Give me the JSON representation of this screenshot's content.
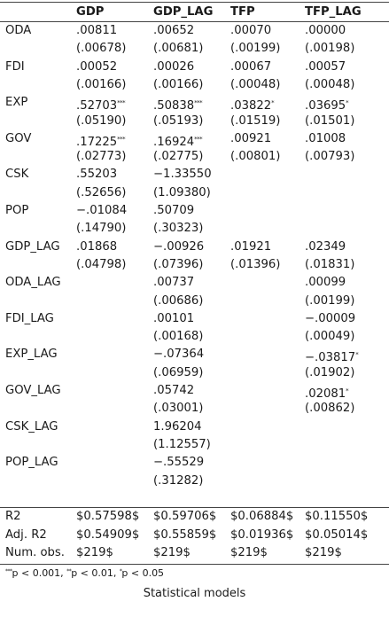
{
  "columns": [
    "",
    "GDP",
    "GDP_LAG",
    "TFP",
    "TFP_LAG"
  ],
  "rows": [
    {
      "label": "ODA",
      "coef": [
        ".00811",
        ".00652",
        ".00070",
        ".00000"
      ],
      "coef_stars": [
        "",
        "",
        "",
        ""
      ],
      "se": [
        "(.00678)",
        "(.00681)",
        "(.00199)",
        "(.00198)"
      ]
    },
    {
      "label": "FDI",
      "coef": [
        ".00052",
        ".00026",
        ".00067",
        ".00057"
      ],
      "coef_stars": [
        "",
        "",
        "",
        ""
      ],
      "se": [
        "(.00166)",
        "(.00166)",
        "(.00048)",
        "(.00048)"
      ]
    },
    {
      "label": "EXP",
      "coef": [
        ".52703",
        ".50838",
        ".03822",
        ".03695"
      ],
      "coef_stars": [
        "***",
        "***",
        "*",
        "*"
      ],
      "se": [
        "(.05190)",
        "(.05193)",
        "(.01519)",
        "(.01501)"
      ]
    },
    {
      "label": "GOV",
      "coef": [
        ".17225",
        ".16924",
        ".00921",
        ".01008"
      ],
      "coef_stars": [
        "***",
        "***",
        "",
        ""
      ],
      "se": [
        "(.02773)",
        "(.02775)",
        "(.00801)",
        "(.00793)"
      ]
    },
    {
      "label": "CSK",
      "coef": [
        ".55203",
        "−1.33550",
        "",
        ""
      ],
      "coef_stars": [
        "",
        "",
        "",
        ""
      ],
      "se": [
        "(.52656)",
        "(1.09380)",
        "",
        ""
      ]
    },
    {
      "label": "POP",
      "coef": [
        "−.01084",
        ".50709",
        "",
        ""
      ],
      "coef_stars": [
        "",
        "",
        "",
        ""
      ],
      "se": [
        "(.14790)",
        "(.30323)",
        "",
        ""
      ]
    },
    {
      "label": "GDP_LAG",
      "coef": [
        ".01868",
        "−.00926",
        ".01921",
        ".02349"
      ],
      "coef_stars": [
        "",
        "",
        "",
        ""
      ],
      "se": [
        "(.04798)",
        "(.07396)",
        "(.01396)",
        "(.01831)"
      ]
    },
    {
      "label": "ODA_LAG",
      "coef": [
        "",
        ".00737",
        "",
        ".00099"
      ],
      "coef_stars": [
        "",
        "",
        "",
        ""
      ],
      "se": [
        "",
        "(.00686)",
        "",
        "(.00199)"
      ]
    },
    {
      "label": "FDI_LAG",
      "coef": [
        "",
        ".00101",
        "",
        "−.00009"
      ],
      "coef_stars": [
        "",
        "",
        "",
        ""
      ],
      "se": [
        "",
        "(.00168)",
        "",
        "(.00049)"
      ]
    },
    {
      "label": "EXP_LAG",
      "coef": [
        "",
        "−.07364",
        "",
        "−.03817"
      ],
      "coef_stars": [
        "",
        "",
        "",
        "*"
      ],
      "se": [
        "",
        "(.06959)",
        "",
        "(.01902)"
      ]
    },
    {
      "label": "GOV_LAG",
      "coef": [
        "",
        ".05742",
        "",
        ".02081"
      ],
      "coef_stars": [
        "",
        "",
        "",
        "*"
      ],
      "se": [
        "",
        "(.03001)",
        "",
        "(.00862)"
      ]
    },
    {
      "label": "CSK_LAG",
      "coef": [
        "",
        "1.96204",
        "",
        ""
      ],
      "coef_stars": [
        "",
        "",
        "",
        ""
      ],
      "se": [
        "",
        "(1.12557)",
        "",
        ""
      ]
    },
    {
      "label": "POP_LAG",
      "coef": [
        "",
        "−.55529",
        "",
        ""
      ],
      "coef_stars": [
        "",
        "",
        "",
        ""
      ],
      "se": [
        "",
        "(.31282)",
        "",
        ""
      ]
    }
  ],
  "stats": [
    {
      "label": "R2",
      "values": [
        "$0.57598$",
        "$0.59706$",
        "$0.06884$",
        "$0.11550$"
      ]
    },
    {
      "label": "Adj. R2",
      "values": [
        "$0.54909$",
        "$0.55859$",
        "$0.01936$",
        "$0.05014$"
      ]
    },
    {
      "label": "Num. obs.",
      "values": [
        "$219$",
        "$219$",
        "$219$",
        "$219$"
      ]
    }
  ],
  "note": [
    {
      "stars": "***",
      "text": "p < 0.001, "
    },
    {
      "stars": "**",
      "text": "p < 0.01, "
    },
    {
      "stars": "*",
      "text": "p < 0.05"
    }
  ],
  "caption": "Statistical models"
}
